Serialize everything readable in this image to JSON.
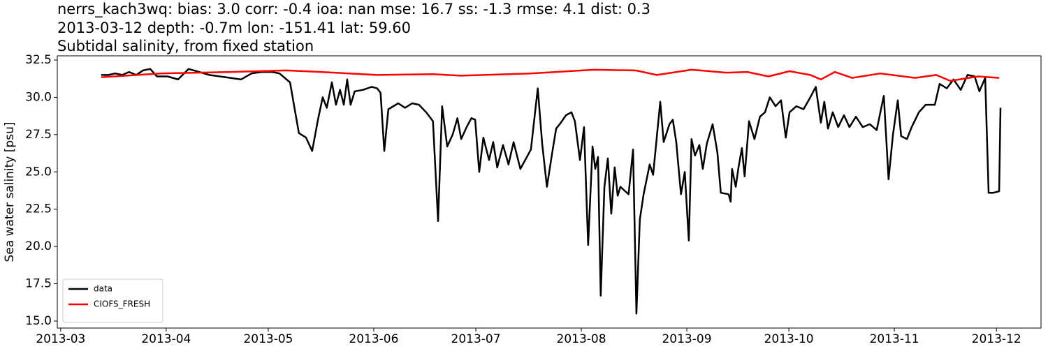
{
  "chart_data": {
    "type": "line",
    "title": [
      "nerrs_kach3wq: bias: 3.0  corr: -0.4  ioa: nan  mse: 16.7  ss: -1.3  rmse: 4.1  dist: 0.3",
      "2013-03-12 depth: -0.7m lon: -151.41 lat: 59.60",
      "Subtidal salinity, from fixed station"
    ],
    "ylabel": "Sea water salinity [psu]",
    "xlim": [
      -1.0,
      288.1
    ],
    "xticks": [
      {
        "value": 0,
        "label": "2013-03"
      },
      {
        "value": 31,
        "label": "2013-04"
      },
      {
        "value": 61,
        "label": "2013-05"
      },
      {
        "value": 92,
        "label": "2013-06"
      },
      {
        "value": 122,
        "label": "2013-07"
      },
      {
        "value": 153,
        "label": "2013-08"
      },
      {
        "value": 184,
        "label": "2013-09"
      },
      {
        "value": 214,
        "label": "2013-10"
      },
      {
        "value": 245,
        "label": "2013-11"
      },
      {
        "value": 275,
        "label": "2013-12"
      }
    ],
    "ylim": [
      14.53,
      32.78
    ],
    "yticks": [
      {
        "value": 15,
        "label": "15.0"
      },
      17.5,
      {
        "value": 20,
        "label": "20.0"
      },
      22.5,
      {
        "value": 25,
        "label": "25.0"
      },
      27.5,
      {
        "value": 30,
        "label": "30.0"
      },
      32.5
    ],
    "legend": "lower left",
    "series": [
      {
        "name": "data",
        "color": "#000000",
        "x": [
          11.9,
          14.0,
          16.0,
          18.1,
          20.1,
          22.2,
          24.2,
          26.3,
          28.3,
          31.4,
          34.5,
          37.6,
          40.7,
          43.7,
          46.8,
          49.9,
          53.0,
          56.1,
          59.1,
          62.2,
          64.3,
          67.4,
          70.0,
          72.1,
          73.9,
          75.6,
          77.0,
          78.2,
          79.7,
          80.9,
          82.1,
          83.2,
          84.2,
          85.2,
          86.4,
          88.9,
          91.4,
          93.0,
          94.0,
          95.1,
          96.3,
          99.2,
          101.2,
          103.3,
          105.3,
          107.4,
          109.4,
          110.9,
          112.1,
          113.6,
          115.2,
          116.6,
          117.7,
          119.3,
          120.7,
          121.8,
          123.0,
          124.2,
          125.9,
          127.1,
          128.3,
          130.0,
          131.6,
          133.1,
          135.1,
          138.2,
          140.2,
          141.5,
          142.9,
          144.4,
          145.6,
          147.0,
          148.5,
          150.1,
          151.1,
          152.6,
          153.8,
          155.0,
          156.3,
          157.1,
          157.9,
          158.7,
          159.8,
          160.8,
          161.8,
          162.8,
          163.7,
          164.5,
          165.9,
          166.9,
          168.2,
          169.2,
          170.2,
          171.3,
          173.1,
          174.1,
          176.2,
          177.2,
          178.9,
          179.9,
          180.9,
          182.3,
          183.4,
          184.6,
          185.4,
          186.4,
          187.7,
          188.7,
          189.9,
          191.6,
          193.0,
          194.0,
          196.3,
          196.9,
          197.3,
          198.4,
          199.2,
          200.2,
          201.0,
          202.3,
          203.9,
          205.5,
          207.0,
          208.4,
          210.1,
          211.7,
          213.1,
          214.2,
          216.2,
          218.3,
          220.3,
          221.9,
          223.4,
          224.4,
          225.5,
          226.9,
          228.5,
          230.2,
          231.8,
          233.7,
          235.7,
          237.8,
          239.8,
          241.9,
          243.3,
          244.6,
          246.0,
          247.0,
          248.7,
          250.1,
          252.2,
          254.2,
          256.9,
          258.3,
          260.4,
          262.4,
          264.5,
          266.5,
          268.6,
          270.0,
          271.7,
          272.7,
          274.1,
          275.8,
          276.2
        ],
        "values": [
          31.5,
          31.5,
          31.6,
          31.5,
          31.7,
          31.5,
          31.8,
          31.9,
          31.4,
          31.4,
          31.2,
          31.9,
          31.7,
          31.5,
          31.4,
          31.3,
          31.2,
          31.6,
          31.7,
          31.7,
          31.6,
          31.0,
          27.6,
          27.3,
          26.4,
          28.5,
          30.0,
          29.3,
          31.0,
          29.5,
          30.5,
          29.5,
          31.2,
          29.5,
          30.4,
          30.5,
          30.7,
          30.6,
          30.3,
          26.4,
          29.2,
          29.6,
          29.3,
          29.6,
          29.5,
          29.0,
          28.4,
          21.7,
          29.4,
          26.7,
          27.5,
          28.6,
          27.2,
          28.0,
          28.6,
          28.5,
          25.0,
          27.3,
          25.8,
          27.0,
          25.3,
          26.8,
          25.5,
          27.0,
          25.2,
          26.5,
          30.6,
          26.9,
          24.0,
          26.2,
          27.9,
          28.3,
          28.8,
          29.0,
          28.4,
          25.8,
          28.0,
          20.1,
          26.7,
          25.2,
          26.0,
          16.7,
          24.0,
          25.9,
          22.2,
          25.3,
          23.4,
          24.0,
          23.7,
          23.5,
          26.5,
          15.5,
          21.8,
          23.5,
          25.5,
          24.8,
          29.7,
          27.0,
          28.2,
          28.5,
          27.0,
          23.5,
          25.0,
          20.4,
          27.2,
          26.1,
          26.8,
          25.2,
          26.9,
          28.2,
          26.3,
          23.6,
          23.5,
          23.0,
          25.2,
          24.0,
          25.3,
          26.6,
          24.7,
          28.4,
          27.2,
          28.7,
          29.0,
          30.0,
          29.4,
          29.8,
          27.3,
          29.0,
          29.4,
          29.2,
          30.0,
          30.7,
          28.3,
          29.7,
          27.9,
          29.0,
          28.0,
          28.8,
          28.0,
          28.7,
          28.0,
          28.2,
          27.8,
          30.1,
          24.5,
          27.5,
          29.8,
          27.4,
          27.2,
          28.0,
          29.0,
          29.5,
          29.5,
          30.9,
          30.6,
          31.2,
          30.5,
          31.5,
          31.4,
          30.4,
          31.3,
          23.6,
          23.6,
          23.7,
          29.3
        ]
      },
      {
        "name": "CIOFS_FRESH",
        "color": "#ff0000",
        "x": [
          11.9,
          29.4,
          49.9,
          66.3,
          76.6,
          93.0,
          109.4,
          117.7,
          138.2,
          156.7,
          169.0,
          175.2,
          185.4,
          195.7,
          201.8,
          208.0,
          214.2,
          220.3,
          223.4,
          227.5,
          232.6,
          240.9,
          251.1,
          257.3,
          261.4,
          269.6,
          275.8
        ],
        "values": [
          31.35,
          31.6,
          31.7,
          31.8,
          31.7,
          31.5,
          31.55,
          31.45,
          31.6,
          31.85,
          31.8,
          31.5,
          31.85,
          31.65,
          31.7,
          31.4,
          31.75,
          31.5,
          31.2,
          31.7,
          31.3,
          31.6,
          31.3,
          31.5,
          31.1,
          31.4,
          31.3
        ]
      }
    ]
  }
}
